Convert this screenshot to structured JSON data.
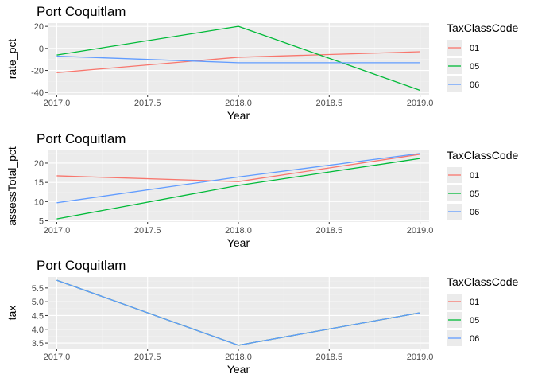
{
  "chart_data": [
    {
      "type": "line",
      "title": "Port Coquitlam",
      "xlabel": "Year",
      "ylabel": "rate_pct",
      "x": [
        2017.0,
        2018.0,
        2019.0
      ],
      "xlim": [
        2016.95,
        2019.05
      ],
      "ylim": [
        -42,
        23
      ],
      "xticks": [
        2017.0,
        2017.5,
        2018.0,
        2018.5,
        2019.0
      ],
      "xtick_labels": [
        "2017.0",
        "2017.5",
        "2018.0",
        "2018.5",
        "2019.0"
      ],
      "yticks": [
        -40,
        -20,
        0,
        20
      ],
      "ytick_labels": [
        "-40",
        "-20",
        "0",
        "20"
      ],
      "grid": true,
      "legend": {
        "title": "TaxClassCode",
        "placement": "right"
      },
      "series": [
        {
          "name": "01",
          "color": "#F8766D",
          "values": [
            -22,
            -8,
            -3
          ]
        },
        {
          "name": "05",
          "color": "#00BA38",
          "values": [
            -6,
            20,
            -38
          ]
        },
        {
          "name": "06",
          "color": "#619CFF",
          "values": [
            -7,
            -13,
            -13
          ]
        }
      ]
    },
    {
      "type": "line",
      "title": "Port Coquitlam",
      "xlabel": "Year",
      "ylabel": "assessTotal_pct",
      "x": [
        2017.0,
        2018.0,
        2019.0
      ],
      "xlim": [
        2016.95,
        2019.05
      ],
      "ylim": [
        4.7,
        23.3
      ],
      "xticks": [
        2017.0,
        2017.5,
        2018.0,
        2018.5,
        2019.0
      ],
      "xtick_labels": [
        "2017.0",
        "2017.5",
        "2018.0",
        "2018.5",
        "2019.0"
      ],
      "yticks": [
        5,
        10,
        15,
        20
      ],
      "ytick_labels": [
        "5",
        "10",
        "15",
        "20"
      ],
      "grid": true,
      "legend": {
        "title": "TaxClassCode",
        "placement": "right"
      },
      "series": [
        {
          "name": "01",
          "color": "#F8766D",
          "values": [
            16.7,
            15.2,
            22.3
          ]
        },
        {
          "name": "05",
          "color": "#00BA38",
          "values": [
            5.5,
            14.2,
            21.2
          ]
        },
        {
          "name": "06",
          "color": "#619CFF",
          "values": [
            9.7,
            16.4,
            22.5
          ]
        }
      ]
    },
    {
      "type": "line",
      "title": "Port Coquitlam",
      "xlabel": "Year",
      "ylabel": "tax",
      "x": [
        2017.0,
        2018.0,
        2019.0
      ],
      "xlim": [
        2016.95,
        2019.05
      ],
      "ylim": [
        3.3,
        5.9
      ],
      "xticks": [
        2017.0,
        2017.5,
        2018.0,
        2018.5,
        2019.0
      ],
      "xtick_labels": [
        "2017.0",
        "2017.5",
        "2018.0",
        "2018.5",
        "2019.0"
      ],
      "yticks": [
        3.5,
        4.0,
        4.5,
        5.0,
        5.5
      ],
      "ytick_labels": [
        "3.5",
        "4.0",
        "4.5",
        "5.0",
        "5.5"
      ],
      "grid": true,
      "legend": {
        "title": "TaxClassCode",
        "placement": "right"
      },
      "series": [
        {
          "name": "01",
          "color": "#F8766D",
          "values": [
            5.78,
            3.42,
            4.6
          ]
        },
        {
          "name": "05",
          "color": "#00BA38",
          "values": [
            5.78,
            3.42,
            4.6
          ]
        },
        {
          "name": "06",
          "color": "#619CFF",
          "values": [
            5.78,
            3.42,
            4.6
          ]
        }
      ]
    }
  ],
  "colors": {
    "panel_background": "#EBEBEB",
    "grid_major": "#FFFFFF",
    "grid_minor": "#F2F2F2",
    "legend_key_background": "#EBEBEB",
    "tick_text": "#4D4D4D"
  }
}
